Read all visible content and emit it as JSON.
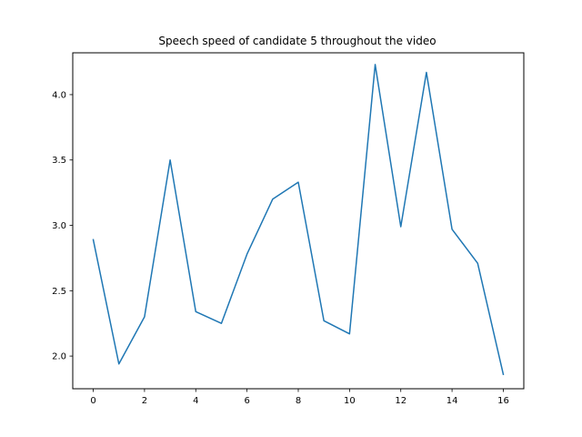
{
  "chart_data": {
    "type": "line",
    "title": "Speech speed of candidate 5 throughout the video",
    "xlabel": "",
    "ylabel": "",
    "grid": false,
    "xlim": [
      -0.8,
      16.8
    ],
    "ylim": [
      1.75,
      4.32
    ],
    "x_ticks": [
      0,
      2,
      4,
      6,
      8,
      10,
      12,
      14,
      16
    ],
    "y_ticks": [
      2.0,
      2.5,
      3.0,
      3.5,
      4.0
    ],
    "x_tick_labels": [
      "0",
      "2",
      "4",
      "6",
      "8",
      "10",
      "12",
      "14",
      "16"
    ],
    "y_tick_labels": [
      "2.0",
      "2.5",
      "3.0",
      "3.5",
      "4.0"
    ],
    "series": [
      {
        "color": "#1f77b4",
        "x": [
          0,
          1,
          2,
          3,
          4,
          5,
          6,
          7,
          8,
          9,
          10,
          11,
          12,
          13,
          14,
          15,
          16
        ],
        "values": [
          2.89,
          1.94,
          2.3,
          3.5,
          2.34,
          2.25,
          2.78,
          3.2,
          3.33,
          2.27,
          2.17,
          4.23,
          2.99,
          4.17,
          2.97,
          2.71,
          1.86
        ]
      }
    ]
  }
}
